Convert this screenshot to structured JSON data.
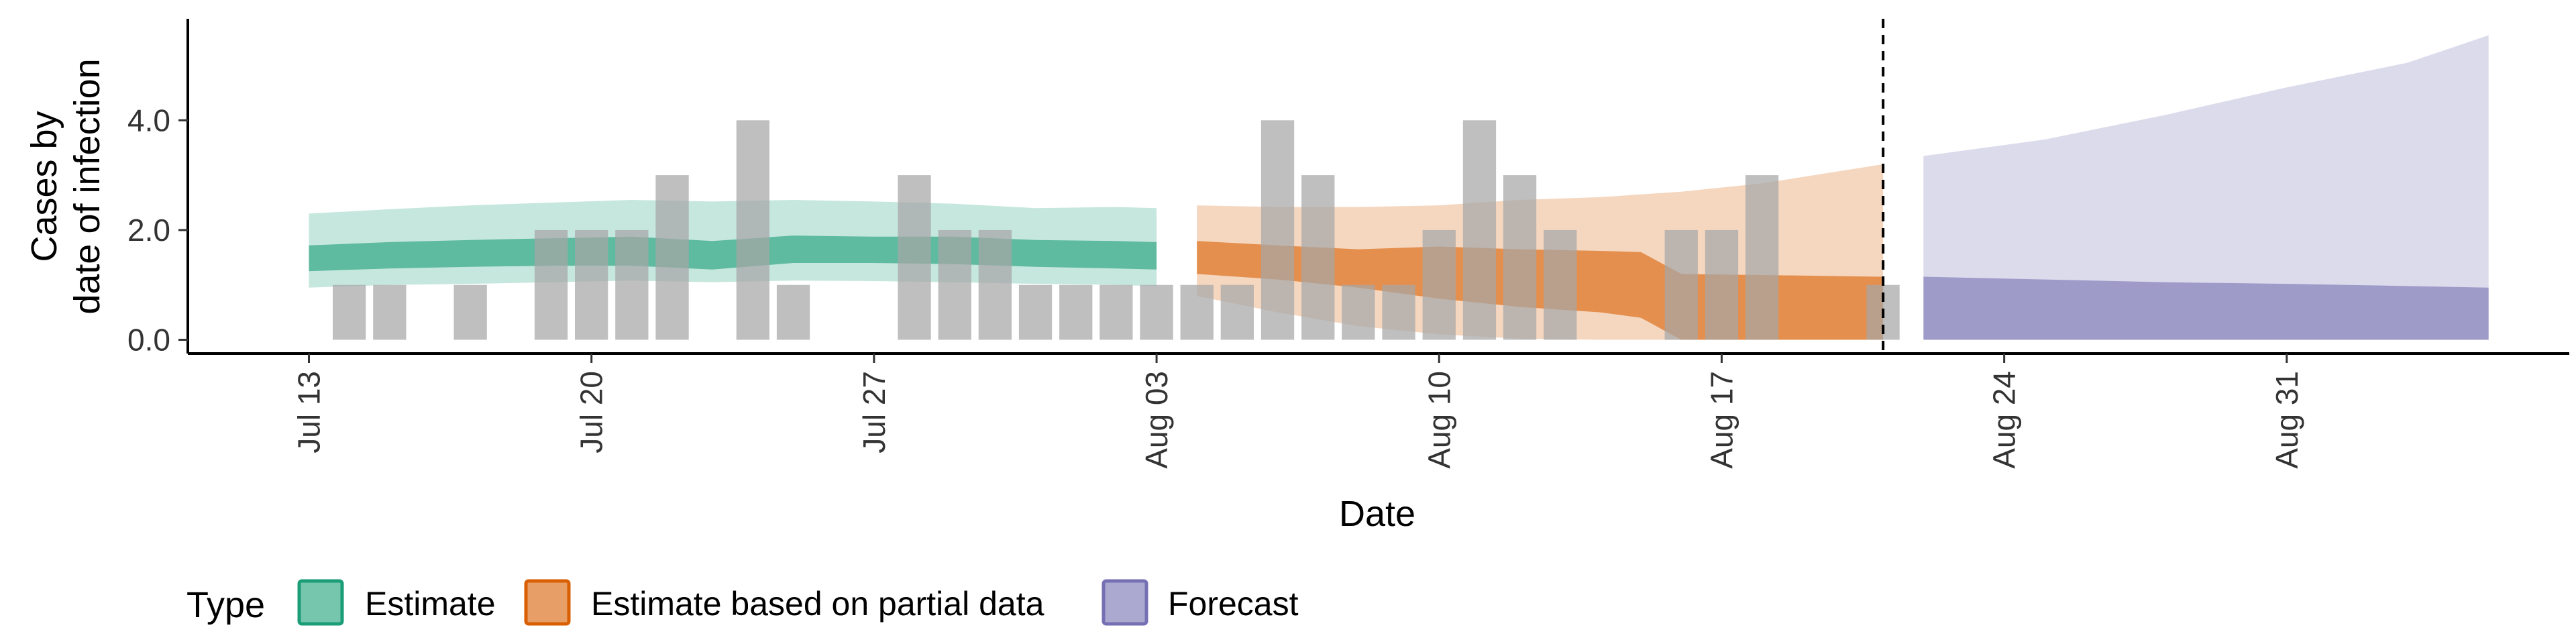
{
  "chart_data": {
    "type": "area",
    "xlabel": "Date",
    "ylabel_lines": [
      "Cases by",
      "date of infection"
    ],
    "x_ticks": [
      {
        "date": "2020-07-13",
        "label": "Jul 13"
      },
      {
        "date": "2020-07-20",
        "label": "Jul 20"
      },
      {
        "date": "2020-07-27",
        "label": "Jul 27"
      },
      {
        "date": "2020-08-03",
        "label": "Aug 03"
      },
      {
        "date": "2020-08-10",
        "label": "Aug 10"
      },
      {
        "date": "2020-08-17",
        "label": "Aug 17"
      },
      {
        "date": "2020-08-24",
        "label": "Aug 24"
      },
      {
        "date": "2020-08-31",
        "label": "Aug 31"
      }
    ],
    "y_ticks": [
      {
        "value": 0,
        "label": "0.0"
      },
      {
        "value": 2,
        "label": "2.0"
      },
      {
        "value": 4,
        "label": "4.0"
      }
    ],
    "xlim": [
      "2020-07-10",
      "2020-09-07"
    ],
    "ylim": [
      -0.25,
      5.85
    ],
    "forecast_divider_date": "2020-08-21",
    "legend": {
      "title": "Type",
      "position": "bottom",
      "entries": [
        {
          "label": "Estimate",
          "color": "#1b9e77"
        },
        {
          "label": "Estimate based on partial data",
          "color": "#d95f02"
        },
        {
          "label": "Forecast",
          "color": "#7570b3"
        }
      ]
    },
    "bar_color": "#a6a6a6",
    "reported_cases": [
      {
        "date": "2020-07-14",
        "value": 1
      },
      {
        "date": "2020-07-15",
        "value": 1
      },
      {
        "date": "2020-07-17",
        "value": 1
      },
      {
        "date": "2020-07-19",
        "value": 2
      },
      {
        "date": "2020-07-20",
        "value": 2
      },
      {
        "date": "2020-07-21",
        "value": 2
      },
      {
        "date": "2020-07-22",
        "value": 3
      },
      {
        "date": "2020-07-24",
        "value": 4
      },
      {
        "date": "2020-07-25",
        "value": 1
      },
      {
        "date": "2020-07-28",
        "value": 3
      },
      {
        "date": "2020-07-29",
        "value": 2
      },
      {
        "date": "2020-07-30",
        "value": 2
      },
      {
        "date": "2020-07-31",
        "value": 1
      },
      {
        "date": "2020-08-01",
        "value": 1
      },
      {
        "date": "2020-08-02",
        "value": 1
      },
      {
        "date": "2020-08-03",
        "value": 1
      },
      {
        "date": "2020-08-04",
        "value": 1
      },
      {
        "date": "2020-08-05",
        "value": 1
      },
      {
        "date": "2020-08-06",
        "value": 4
      },
      {
        "date": "2020-08-07",
        "value": 3
      },
      {
        "date": "2020-08-08",
        "value": 1
      },
      {
        "date": "2020-08-09",
        "value": 1
      },
      {
        "date": "2020-08-10",
        "value": 2
      },
      {
        "date": "2020-08-11",
        "value": 4
      },
      {
        "date": "2020-08-12",
        "value": 3
      },
      {
        "date": "2020-08-13",
        "value": 2
      },
      {
        "date": "2020-08-16",
        "value": 2
      },
      {
        "date": "2020-08-17",
        "value": 2
      },
      {
        "date": "2020-08-18",
        "value": 3
      },
      {
        "date": "2020-08-21",
        "value": 1
      }
    ],
    "series": [
      {
        "name": "Estimate",
        "color": "#1b9e77",
        "dates": [
          "2020-07-13",
          "2020-07-15",
          "2020-07-17",
          "2020-07-19",
          "2020-07-21",
          "2020-07-23",
          "2020-07-25",
          "2020-07-27",
          "2020-07-29",
          "2020-07-31",
          "2020-08-02",
          "2020-08-03"
        ],
        "outer_upper": [
          2.3,
          2.38,
          2.45,
          2.5,
          2.55,
          2.52,
          2.55,
          2.52,
          2.48,
          2.4,
          2.42,
          2.4
        ],
        "outer_lower": [
          0.95,
          1.0,
          1.02,
          1.05,
          1.08,
          1.05,
          1.08,
          1.07,
          1.05,
          1.02,
          1.0,
          0.98
        ],
        "inner_upper": [
          1.72,
          1.78,
          1.82,
          1.85,
          1.88,
          1.8,
          1.9,
          1.88,
          1.88,
          1.82,
          1.8,
          1.78
        ],
        "inner_lower": [
          1.25,
          1.3,
          1.33,
          1.35,
          1.35,
          1.28,
          1.4,
          1.4,
          1.38,
          1.33,
          1.3,
          1.28
        ]
      },
      {
        "name": "Estimate based on partial data",
        "color": "#d95f02",
        "dates": [
          "2020-08-04",
          "2020-08-06",
          "2020-08-08",
          "2020-08-10",
          "2020-08-12",
          "2020-08-14",
          "2020-08-15",
          "2020-08-16",
          "2020-08-18",
          "2020-08-21"
        ],
        "outer_upper": [
          2.45,
          2.42,
          2.42,
          2.45,
          2.55,
          2.6,
          2.65,
          2.7,
          2.85,
          3.2
        ],
        "outer_lower": [
          0.8,
          0.5,
          0.25,
          0.1,
          0.02,
          0.0,
          0.0,
          0.0,
          0.0,
          0.0
        ],
        "inner_upper": [
          1.8,
          1.72,
          1.65,
          1.7,
          1.65,
          1.62,
          1.6,
          1.2,
          1.18,
          1.15
        ],
        "inner_lower": [
          1.2,
          1.1,
          0.95,
          0.75,
          0.6,
          0.5,
          0.4,
          0.0,
          0.0,
          0.0
        ]
      },
      {
        "name": "Forecast",
        "color": "#7570b3",
        "dates": [
          "2020-08-22",
          "2020-08-25",
          "2020-08-28",
          "2020-08-31",
          "2020-09-03",
          "2020-09-05"
        ],
        "outer_upper": [
          3.35,
          3.65,
          4.1,
          4.6,
          5.05,
          5.55
        ],
        "outer_lower": [
          0.0,
          0.0,
          0.0,
          0.0,
          0.0,
          0.0
        ],
        "inner_upper": [
          1.15,
          1.1,
          1.05,
          1.02,
          0.98,
          0.95
        ],
        "inner_lower": [
          0.0,
          0.0,
          0.0,
          0.0,
          0.0,
          0.0
        ]
      }
    ]
  }
}
